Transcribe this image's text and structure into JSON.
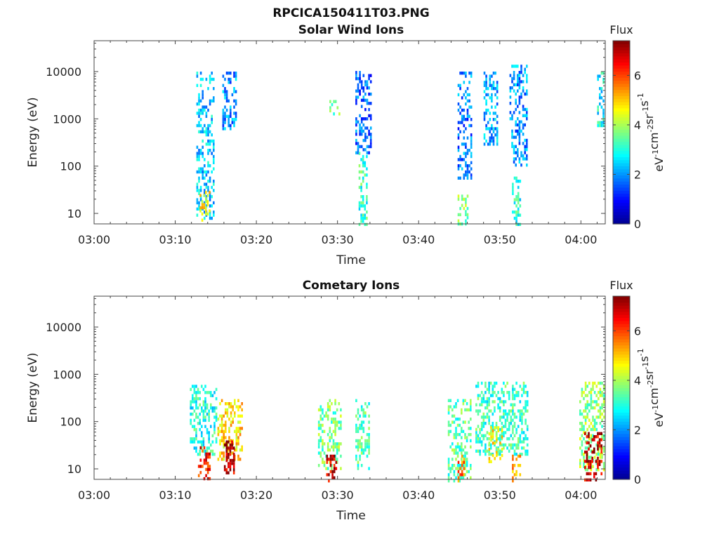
{
  "figure": {
    "title": "RPCICA150411T03.PNG"
  },
  "colormap": [
    "#00008f",
    "#0000ff",
    "#0080ff",
    "#00ffff",
    "#80ff80",
    "#ffff00",
    "#ff8000",
    "#ff0000",
    "#800000"
  ],
  "chart_data": [
    {
      "type": "heatmap",
      "title": "Solar Wind Ions",
      "xlabel": "Time",
      "ylabel": "Energy (eV)",
      "x_ticks": [
        "03:00",
        "03:10",
        "03:20",
        "03:30",
        "03:40",
        "03:50",
        "04:00"
      ],
      "x_range_min": [
        0,
        63
      ],
      "y_scale": "log",
      "y_ticks": [
        "10",
        "100",
        "1000",
        "10000"
      ],
      "y_range_ev": [
        6,
        45000
      ],
      "colorbar": {
        "label": "Flux",
        "units": "eV-1cm-2sr-1s-1",
        "ticks": [
          "0",
          "2",
          "4",
          "6"
        ],
        "range": [
          0,
          7.4
        ]
      },
      "clusters": [
        {
          "t": [
            12.6,
            14.8
          ],
          "e": [
            8,
            10000
          ],
          "flux": 2.4
        },
        {
          "t": [
            13.0,
            14.2
          ],
          "e": [
            6,
            30
          ],
          "flux": 4.6
        },
        {
          "t": [
            15.8,
            17.6
          ],
          "e": [
            600,
            10000
          ],
          "flux": 2.0
        },
        {
          "t": [
            29.0,
            30.2
          ],
          "e": [
            1200,
            2500
          ],
          "flux": 3.6
        },
        {
          "t": [
            32.2,
            34.2
          ],
          "e": [
            200,
            12000
          ],
          "flux": 1.6
        },
        {
          "t": [
            32.6,
            33.6
          ],
          "e": [
            6,
            200
          ],
          "flux": 3.2
        },
        {
          "t": [
            44.8,
            46.6
          ],
          "e": [
            60,
            10000
          ],
          "flux": 1.8
        },
        {
          "t": [
            44.8,
            46.0
          ],
          "e": [
            6,
            25
          ],
          "flux": 3.8
        },
        {
          "t": [
            48.0,
            49.6
          ],
          "e": [
            300,
            10000
          ],
          "flux": 2.2
        },
        {
          "t": [
            51.2,
            53.4
          ],
          "e": [
            100,
            14000
          ],
          "flux": 2.0
        },
        {
          "t": [
            51.5,
            52.6
          ],
          "e": [
            6,
            60
          ],
          "flux": 3.0
        },
        {
          "t": [
            62.0,
            62.8
          ],
          "e": [
            700,
            10000
          ],
          "flux": 2.8
        }
      ]
    },
    {
      "type": "heatmap",
      "title": "Cometary Ions",
      "xlabel": "Time",
      "ylabel": "Energy (eV)",
      "x_ticks": [
        "03:00",
        "03:10",
        "03:20",
        "03:30",
        "03:40",
        "03:50",
        "04:00"
      ],
      "x_range_min": [
        0,
        63
      ],
      "y_scale": "log",
      "y_ticks": [
        "10",
        "100",
        "1000",
        "10000"
      ],
      "y_range_ev": [
        6,
        45000
      ],
      "colorbar": {
        "label": "Flux",
        "units": "eV-1cm-2sr-1s-1",
        "ticks": [
          "0",
          "2",
          "4",
          "6"
        ],
        "range": [
          0,
          7.4
        ]
      },
      "clusters": [
        {
          "t": [
            11.8,
            15.0
          ],
          "e": [
            20,
            600
          ],
          "flux": 3.0
        },
        {
          "t": [
            12.8,
            14.2
          ],
          "e": [
            6,
            30
          ],
          "flux": 6.4
        },
        {
          "t": [
            15.2,
            18.2
          ],
          "e": [
            15,
            300
          ],
          "flux": 4.8
        },
        {
          "t": [
            16.0,
            17.2
          ],
          "e": [
            8,
            40
          ],
          "flux": 6.8
        },
        {
          "t": [
            27.6,
            30.4
          ],
          "e": [
            10,
            300
          ],
          "flux": 3.6
        },
        {
          "t": [
            28.6,
            29.8
          ],
          "e": [
            6,
            20
          ],
          "flux": 6.8
        },
        {
          "t": [
            32.2,
            34.0
          ],
          "e": [
            10,
            300
          ],
          "flux": 3.4
        },
        {
          "t": [
            43.6,
            46.4
          ],
          "e": [
            6,
            300
          ],
          "flux": 3.4
        },
        {
          "t": [
            44.8,
            45.6
          ],
          "e": [
            6,
            20
          ],
          "flux": 5.6
        },
        {
          "t": [
            47.0,
            53.5
          ],
          "e": [
            20,
            700
          ],
          "flux": 3.2
        },
        {
          "t": [
            48.6,
            50.2
          ],
          "e": [
            15,
            80
          ],
          "flux": 4.6
        },
        {
          "t": [
            51.5,
            52.5
          ],
          "e": [
            6,
            20
          ],
          "flux": 5.2
        },
        {
          "t": [
            59.8,
            62.8
          ],
          "e": [
            10,
            700
          ],
          "flux": 3.8
        },
        {
          "t": [
            60.4,
            62.6
          ],
          "e": [
            6,
            60
          ],
          "flux": 6.8
        }
      ]
    }
  ]
}
